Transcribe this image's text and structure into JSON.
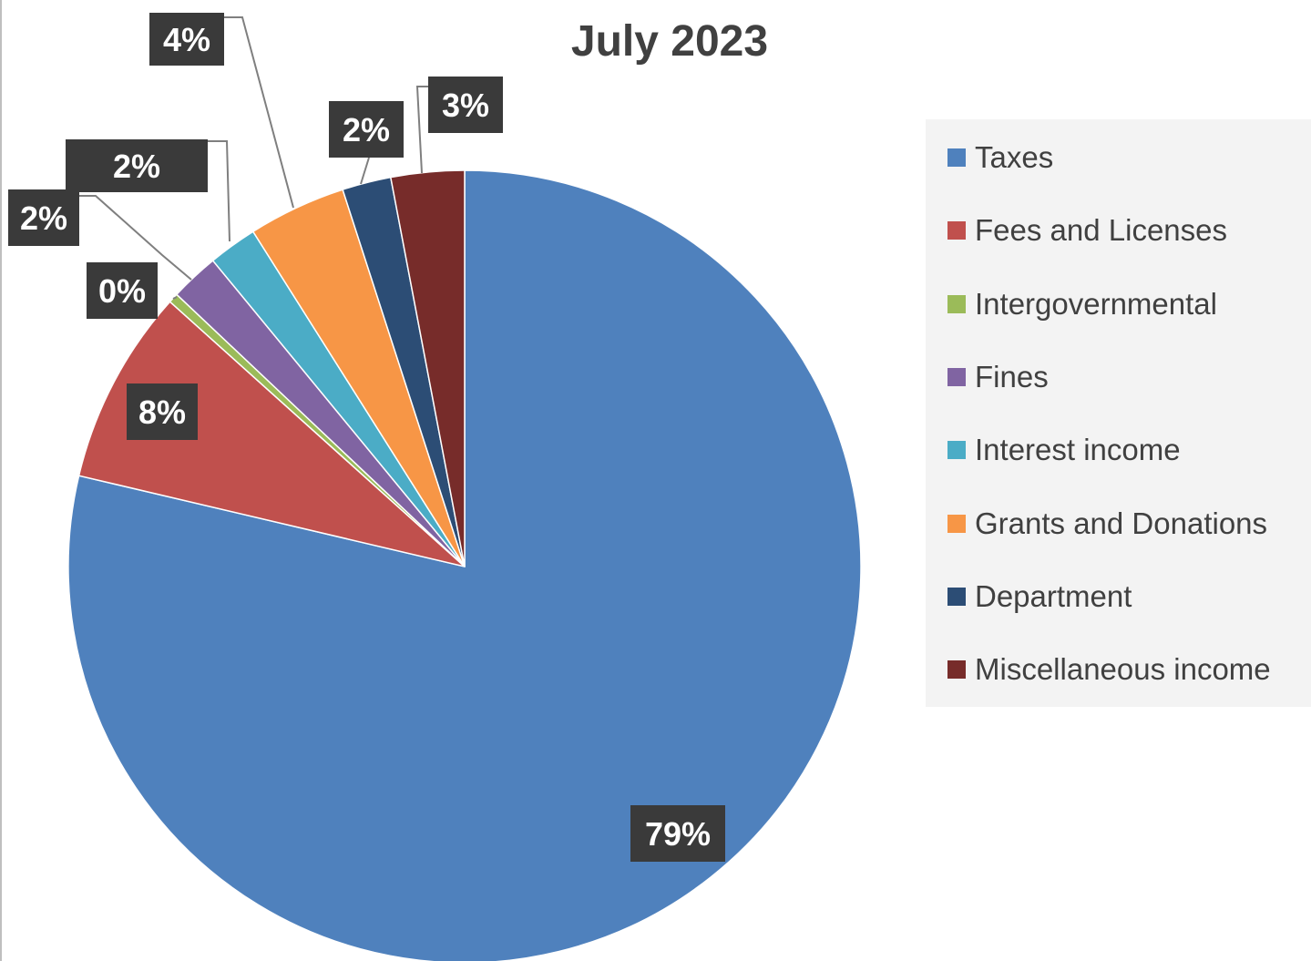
{
  "chart_data": {
    "type": "pie",
    "title": "July 2023",
    "categories": [
      "Taxes",
      "Fees and Licenses",
      "Intergovernmental",
      "Fines",
      "Interest income",
      "Grants and Donations",
      "Department",
      "Miscellaneous income"
    ],
    "values": [
      79,
      8,
      0.4,
      2,
      2,
      4,
      2,
      3
    ],
    "labels": [
      "79%",
      "8%",
      "0%",
      "2%",
      "2%",
      "4%",
      "2%",
      "3%"
    ],
    "colors": [
      "#4f81bd",
      "#c0504d",
      "#9bbb59",
      "#8064a2",
      "#4bacc6",
      "#f79646",
      "#2c4d75",
      "#772c2a"
    ],
    "legend_position": "right"
  }
}
